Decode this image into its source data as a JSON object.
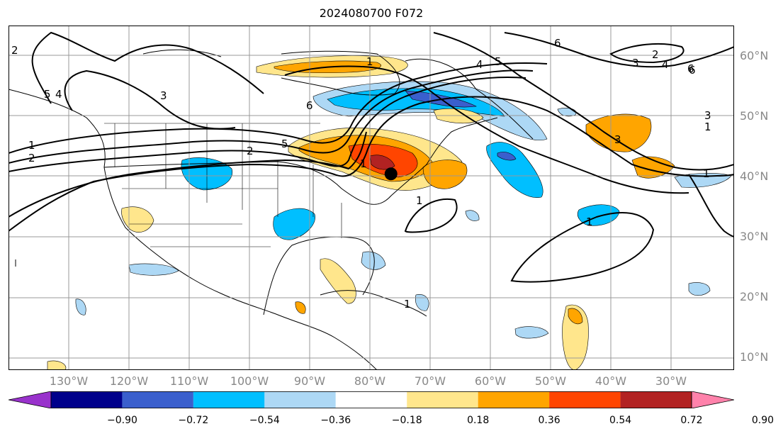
{
  "title": "2024080700 F072",
  "lat_labels": [
    {
      "text": "60°N",
      "lat": 60
    },
    {
      "text": "50°N",
      "lat": 50
    },
    {
      "text": "40°N",
      "lat": 40
    },
    {
      "text": "30°N",
      "lat": 30
    },
    {
      "text": "20°N",
      "lat": 20
    },
    {
      "text": "10°N",
      "lat": 10
    }
  ],
  "lon_labels": [
    {
      "text": "130°W",
      "lon": -130
    },
    {
      "text": "120°W",
      "lon": -120
    },
    {
      "text": "110°W",
      "lon": -110
    },
    {
      "text": "100°W",
      "lon": -100
    },
    {
      "text": "90°W",
      "lon": -90
    },
    {
      "text": "80°W",
      "lon": -80
    },
    {
      "text": "70°W",
      "lon": -70
    },
    {
      "text": "60°W",
      "lon": -60
    },
    {
      "text": "50°W",
      "lon": -50
    },
    {
      "text": "40°W",
      "lon": -40
    },
    {
      "text": "30°W",
      "lon": -30
    }
  ],
  "colorbar": {
    "levels": [
      "−0.90",
      "−0.72",
      "−0.54",
      "−0.36",
      "−0.18",
      "0.18",
      "0.36",
      "0.54",
      "0.72",
      "0.90"
    ],
    "colors": [
      "#9932cc",
      "#00008b",
      "#3a5fcd",
      "#00bfff",
      "#add8f5",
      "#ffffff",
      "#ffe68c",
      "#ffa500",
      "#ff4500",
      "#b22222",
      "#ff82ab"
    ]
  },
  "contour_labels": [
    "1",
    "2",
    "3",
    "4",
    "5",
    "6",
    "2",
    "3",
    "4",
    "5",
    "6",
    "1",
    "1",
    "1",
    "2",
    "3",
    "1",
    "1",
    "1",
    "3",
    "6",
    "2",
    "1",
    "4",
    "5",
    "6"
  ],
  "marker": {
    "name": "storm-center",
    "lon": -76.5,
    "lat": 40.5
  }
}
